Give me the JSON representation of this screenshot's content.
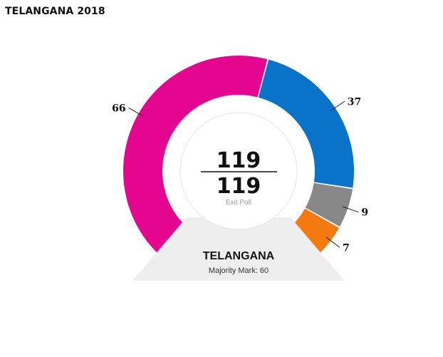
{
  "page": {
    "title": "TELANGANA 2018"
  },
  "chart_data": {
    "type": "pie",
    "variant": "semi-donut",
    "title": "TELANGANA 2018",
    "total_seats": 119,
    "seats_counted": 119,
    "center_caption": "Exit Poll",
    "state": "TELANGANA",
    "majority_mark_label": "Majority Mark: 60",
    "series": [
      {
        "value": 66,
        "label": "66",
        "color": "#e5068f"
      },
      {
        "value": 37,
        "label": "37",
        "color": "#0873c8"
      },
      {
        "value": 9,
        "label": "9",
        "color": "#888888"
      },
      {
        "value": 7,
        "label": "7",
        "color": "#f47a10"
      }
    ]
  }
}
